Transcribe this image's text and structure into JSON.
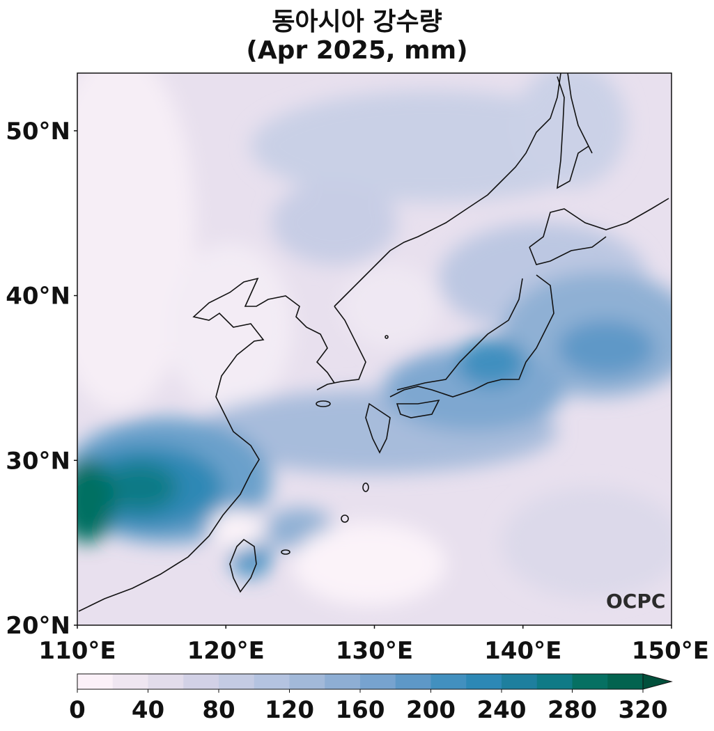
{
  "header": {
    "title": "동아시아 강수량",
    "subtitle": "(Apr 2025, mm)"
  },
  "map": {
    "extent_lon": [
      110,
      150
    ],
    "extent_lat": [
      20,
      53.5
    ],
    "lon_ticks": [
      "110°E",
      "120°E",
      "130°E",
      "140°E",
      "150°E"
    ],
    "lat_ticks": [
      "20°N",
      "30°N",
      "40°N",
      "50°N"
    ],
    "logo_text": "OCPC"
  },
  "colorbar": {
    "levels": [
      0,
      20,
      40,
      60,
      80,
      100,
      120,
      140,
      160,
      180,
      200,
      220,
      240,
      260,
      280,
      300,
      320
    ],
    "tick_labels": [
      "0",
      "40",
      "80",
      "120",
      "160",
      "200",
      "240",
      "280",
      "320"
    ],
    "extend": "max",
    "colors": [
      "#fbf1f8",
      "#efe6f1",
      "#e2dceb",
      "#d2d1e6",
      "#c4cbe3",
      "#b4c3e0",
      "#a2b9d9",
      "#8eaed4",
      "#77a3cf",
      "#5e98c7",
      "#4290bf",
      "#2d88b5",
      "#1e7f9e",
      "#0f7a86",
      "#067062",
      "#03634f",
      "#02503c"
    ]
  }
}
